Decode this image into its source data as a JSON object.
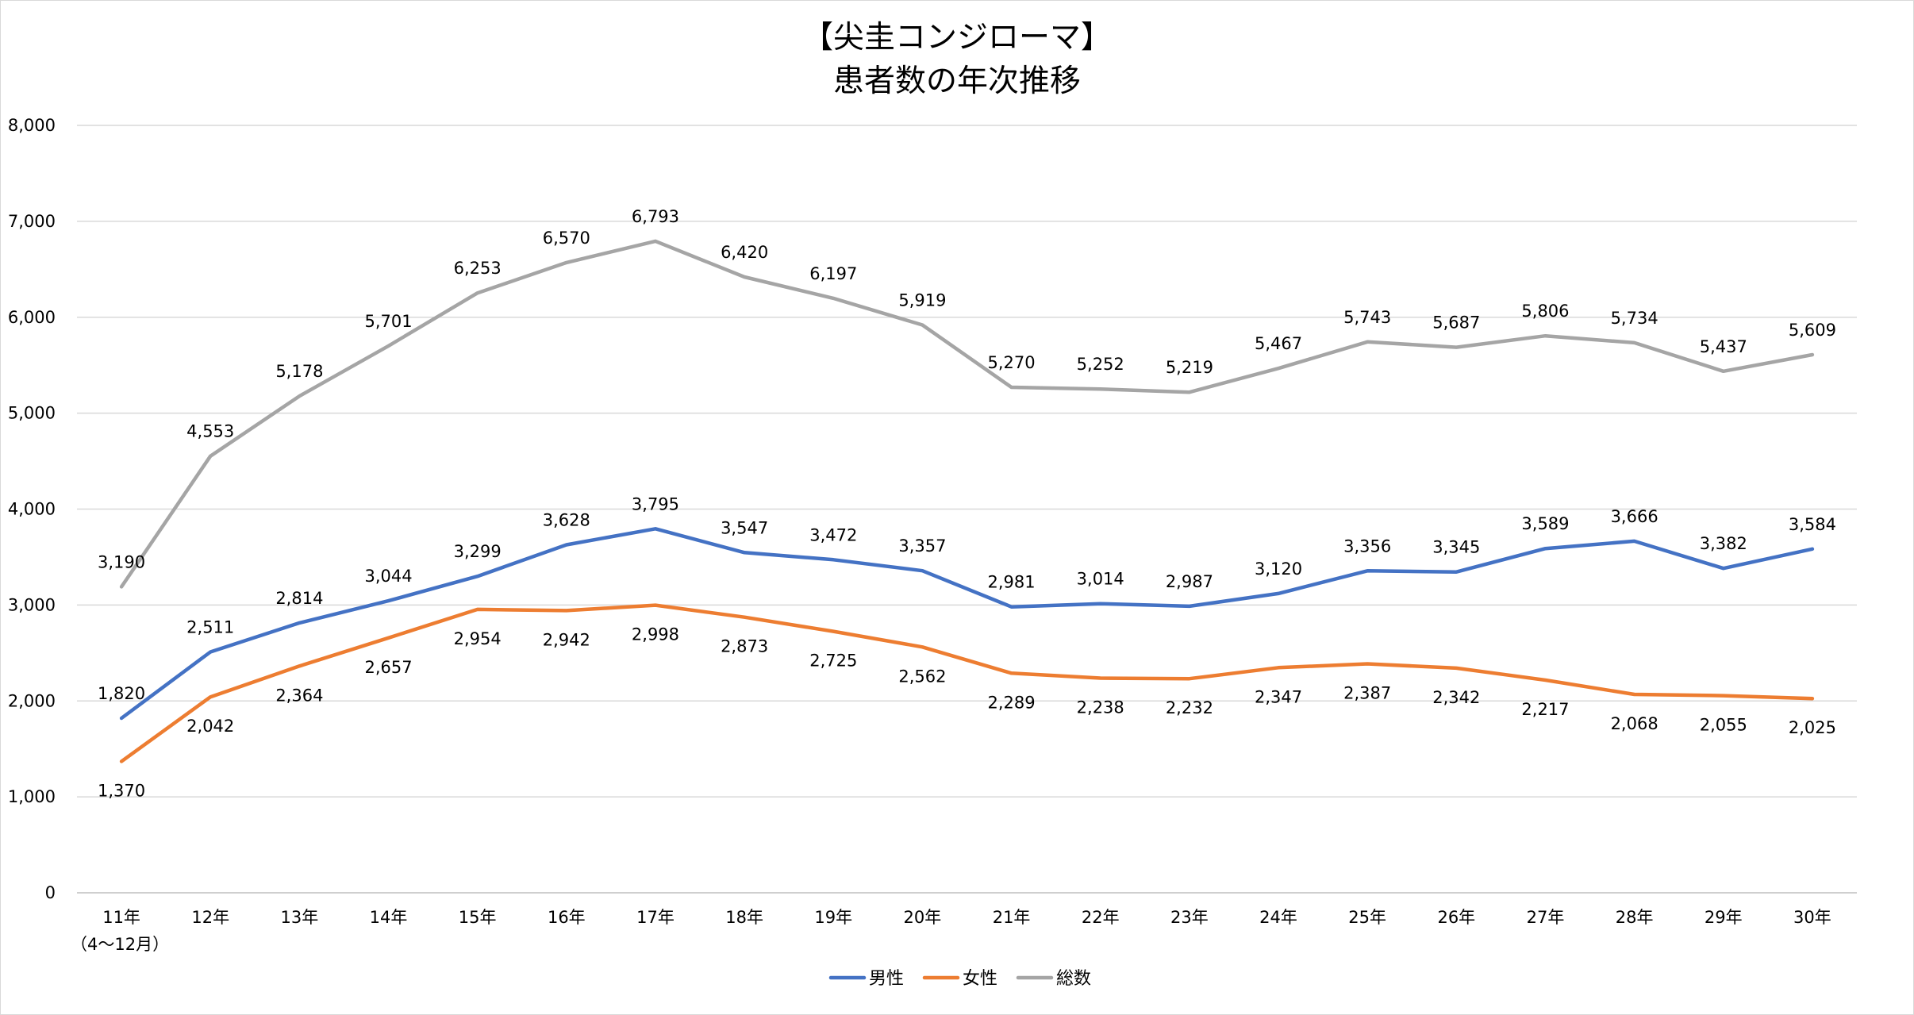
{
  "chart_data": {
    "type": "line",
    "title_line1": "【尖圭コンジローマ】",
    "title_line2": "患者数の年次推移",
    "categories": [
      "11年",
      "12年",
      "13年",
      "14年",
      "15年",
      "16年",
      "17年",
      "18年",
      "19年",
      "20年",
      "21年",
      "22年",
      "23年",
      "24年",
      "25年",
      "26年",
      "27年",
      "28年",
      "29年",
      "30年"
    ],
    "category_note": "（4～12月）",
    "ylim": [
      0,
      8000
    ],
    "y_ticks": [
      0,
      1000,
      2000,
      3000,
      4000,
      5000,
      6000,
      7000,
      8000
    ],
    "y_tick_labels": [
      "0",
      "1,000",
      "2,000",
      "3,000",
      "4,000",
      "5,000",
      "6,000",
      "7,000",
      "8,000"
    ],
    "grid": true,
    "legend_position": "bottom",
    "series": [
      {
        "name": "男性",
        "color": "#4472c4",
        "values": [
          1820,
          2511,
          2814,
          3044,
          3299,
          3628,
          3795,
          3547,
          3472,
          3357,
          2981,
          3014,
          2987,
          3120,
          3356,
          3345,
          3589,
          3666,
          3382,
          3584
        ],
        "labels": [
          "1,820",
          "2,511",
          "2,814",
          "3,044",
          "3,299",
          "3,628",
          "3,795",
          "3,547",
          "3,472",
          "3,357",
          "2,981",
          "3,014",
          "2,987",
          "3,120",
          "3,356",
          "3,345",
          "3,589",
          "3,666",
          "3,382",
          "3,584"
        ]
      },
      {
        "name": "女性",
        "color": "#ed7d31",
        "values": [
          1370,
          2042,
          2364,
          2657,
          2954,
          2942,
          2998,
          2873,
          2725,
          2562,
          2289,
          2238,
          2232,
          2347,
          2387,
          2342,
          2217,
          2068,
          2055,
          2025
        ],
        "labels": [
          "1,370",
          "2,042",
          "2,364",
          "2,657",
          "2,954",
          "2,942",
          "2,998",
          "2,873",
          "2,725",
          "2,562",
          "2,289",
          "2,238",
          "2,232",
          "2,347",
          "2,387",
          "2,342",
          "2,217",
          "2,068",
          "2,055",
          "2,025"
        ]
      },
      {
        "name": "総数",
        "color": "#a5a5a5",
        "values": [
          3190,
          4553,
          5178,
          5701,
          6253,
          6570,
          6793,
          6420,
          6197,
          5919,
          5270,
          5252,
          5219,
          5467,
          5743,
          5687,
          5806,
          5734,
          5437,
          5609
        ],
        "labels": [
          "3,190",
          "4,553",
          "5,178",
          "5,701",
          "6,253",
          "6,570",
          "6,793",
          "6,420",
          "6,197",
          "5,919",
          "5,270",
          "5,252",
          "5,219",
          "5,467",
          "5,743",
          "5,687",
          "5,806",
          "5,734",
          "5,437",
          "5,609"
        ]
      }
    ]
  }
}
